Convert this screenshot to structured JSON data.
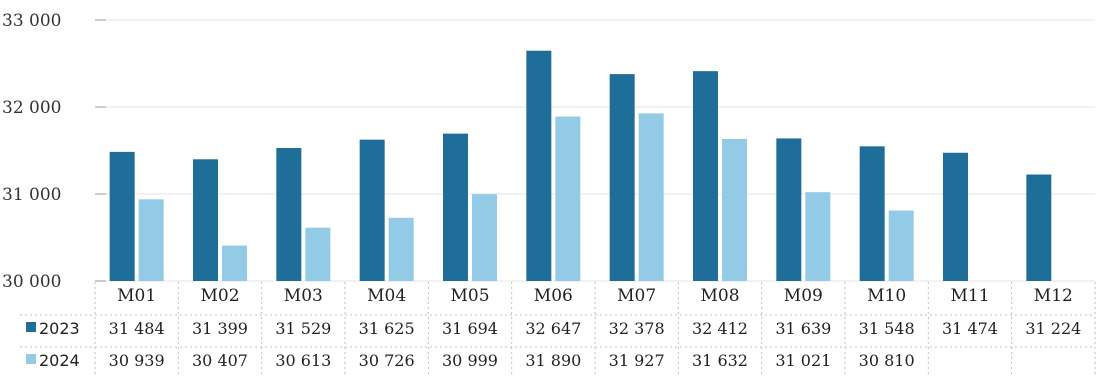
{
  "chart_data": {
    "type": "bar",
    "categories": [
      "M01",
      "M02",
      "M03",
      "M04",
      "M05",
      "M06",
      "M07",
      "M08",
      "M09",
      "M10",
      "M11",
      "M12"
    ],
    "series": [
      {
        "name": "2023",
        "color": "#1f6e99",
        "values": [
          31484,
          31399,
          31529,
          31625,
          31694,
          32647,
          32378,
          32412,
          31639,
          31548,
          31474,
          31224
        ],
        "labels": [
          "31 484",
          "31 399",
          "31 529",
          "31 625",
          "31 694",
          "32 647",
          "32 378",
          "32 412",
          "31 639",
          "31 548",
          "31 474",
          "31 224"
        ]
      },
      {
        "name": "2024",
        "color": "#93cbe6",
        "values": [
          30939,
          30407,
          30613,
          30726,
          30999,
          31890,
          31927,
          31632,
          31021,
          30810,
          null,
          null
        ],
        "labels": [
          "30 939",
          "30 407",
          "30 613",
          "30 726",
          "30 999",
          "31 890",
          "31 927",
          "31 632",
          "31 021",
          "30 810",
          "",
          ""
        ]
      }
    ],
    "ylim": [
      30000,
      33000
    ],
    "yticks": [
      30000,
      31000,
      32000,
      33000
    ],
    "ytick_labels": [
      "30 000",
      "31 000",
      "32 000",
      "33 000"
    ],
    "grid": true,
    "legend": "data-table-rows"
  }
}
